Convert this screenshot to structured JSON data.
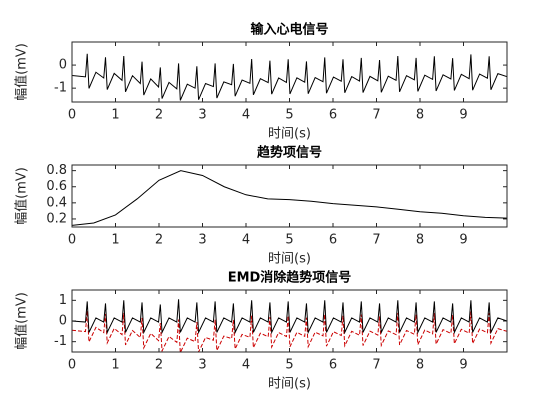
{
  "chart_data": [
    {
      "type": "line",
      "title": "输入心电信号",
      "xlabel": "时间(s)",
      "ylabel": "幅值(mV)",
      "xlim": [
        0,
        10
      ],
      "xticks": [
        0,
        1,
        2,
        3,
        4,
        5,
        6,
        7,
        8,
        9
      ],
      "ylim": [
        -1.6,
        1
      ],
      "yticks": [
        -1,
        0
      ],
      "x": [
        0,
        0.31,
        0.35,
        0.39,
        0.55,
        0.73,
        0.77,
        0.81,
        0.97,
        1.15,
        1.19,
        1.23,
        1.39,
        1.57,
        1.61,
        1.65,
        1.81,
        1.99,
        2.03,
        2.07,
        2.23,
        2.41,
        2.45,
        2.49,
        2.65,
        2.83,
        2.87,
        2.91,
        3.07,
        3.25,
        3.29,
        3.33,
        3.49,
        3.67,
        3.71,
        3.75,
        3.91,
        4.09,
        4.13,
        4.17,
        4.33,
        4.51,
        4.55,
        4.59,
        4.75,
        4.93,
        4.97,
        5.01,
        5.17,
        5.35,
        5.39,
        5.43,
        5.59,
        5.77,
        5.81,
        5.85,
        6.01,
        6.19,
        6.23,
        6.27,
        6.43,
        6.61,
        6.65,
        6.69,
        6.85,
        7.03,
        7.07,
        7.11,
        7.27,
        7.45,
        7.49,
        7.53,
        7.69,
        7.87,
        7.91,
        7.95,
        8.11,
        8.29,
        8.33,
        8.37,
        8.53,
        8.71,
        8.75,
        8.79,
        8.95,
        9.13,
        9.17,
        9.21,
        9.37,
        9.55,
        9.59,
        9.63,
        9.79,
        10
      ],
      "series": [
        {
          "color": "#000000",
          "linestyle": "solid",
          "values": [
            -0.45,
            -0.51,
            0.49,
            -1.01,
            -0.31,
            -0.56,
            0.34,
            -1.06,
            -0.36,
            -0.66,
            0.39,
            -1.16,
            -0.46,
            -0.8,
            0.15,
            -1.3,
            -0.6,
            -0.95,
            -0.1,
            -1.45,
            -0.75,
            -1.03,
            0.07,
            -1.53,
            -0.83,
            -1.0,
            -0.05,
            -1.5,
            -0.8,
            -0.93,
            0.07,
            -1.43,
            -0.73,
            -0.85,
            0.05,
            -1.35,
            -0.65,
            -0.79,
            0.26,
            -1.29,
            -0.59,
            -0.76,
            0.19,
            -1.26,
            -0.56,
            -0.75,
            0.25,
            -1.25,
            -0.55,
            -0.74,
            0.16,
            -1.24,
            -0.54,
            -0.72,
            0.33,
            -1.22,
            -0.52,
            -0.7,
            0.25,
            -1.2,
            -0.5,
            -0.69,
            0.31,
            -1.19,
            -0.49,
            -0.68,
            0.22,
            -1.18,
            -0.48,
            -0.66,
            0.39,
            -1.16,
            -0.46,
            -0.64,
            0.31,
            -1.14,
            -0.44,
            -0.62,
            0.38,
            -1.12,
            -0.42,
            -0.6,
            0.3,
            -1.1,
            -0.4,
            -0.59,
            0.46,
            -1.09,
            -0.39,
            -0.57,
            0.38,
            -1.07,
            -0.37,
            -0.5
          ]
        }
      ]
    },
    {
      "type": "line",
      "title": "趋势项信号",
      "xlabel": "时间(s)",
      "ylabel": "幅值(mV)",
      "xlim": [
        0,
        10
      ],
      "xticks": [
        0,
        1,
        2,
        3,
        4,
        5,
        6,
        7,
        8,
        9
      ],
      "ylim": [
        0.1,
        0.87
      ],
      "yticks": [
        0.2,
        0.4,
        0.6,
        0.8
      ],
      "x": [
        0,
        0.5,
        1,
        1.5,
        2,
        2.5,
        3,
        3.5,
        4,
        4.5,
        5,
        5.5,
        6,
        6.5,
        7,
        7.5,
        8,
        8.5,
        9,
        9.5,
        10
      ],
      "series": [
        {
          "color": "#000000",
          "linestyle": "solid",
          "values": [
            0.12,
            0.15,
            0.25,
            0.45,
            0.68,
            0.8,
            0.74,
            0.6,
            0.5,
            0.45,
            0.44,
            0.42,
            0.39,
            0.37,
            0.35,
            0.32,
            0.29,
            0.27,
            0.24,
            0.22,
            0.21
          ]
        }
      ]
    },
    {
      "type": "line",
      "title": "EMD消除趋势项信号",
      "xlabel": "时间(s)",
      "ylabel": "幅值(mV)",
      "xlim": [
        0,
        10
      ],
      "xticks": [
        0,
        1,
        2,
        3,
        4,
        5,
        6,
        7,
        8,
        9
      ],
      "ylim": [
        -1.5,
        1.5
      ],
      "yticks": [
        -1,
        0,
        1
      ],
      "x": [
        0,
        0.31,
        0.35,
        0.39,
        0.55,
        0.73,
        0.77,
        0.81,
        0.97,
        1.15,
        1.19,
        1.23,
        1.39,
        1.57,
        1.61,
        1.65,
        1.81,
        1.99,
        2.03,
        2.07,
        2.23,
        2.41,
        2.45,
        2.49,
        2.65,
        2.83,
        2.87,
        2.91,
        3.07,
        3.25,
        3.29,
        3.33,
        3.49,
        3.67,
        3.71,
        3.75,
        3.91,
        4.09,
        4.13,
        4.17,
        4.33,
        4.51,
        4.55,
        4.59,
        4.75,
        4.93,
        4.97,
        5.01,
        5.17,
        5.35,
        5.39,
        5.43,
        5.59,
        5.77,
        5.81,
        5.85,
        6.01,
        6.19,
        6.23,
        6.27,
        6.43,
        6.61,
        6.65,
        6.69,
        6.85,
        7.03,
        7.07,
        7.11,
        7.27,
        7.45,
        7.49,
        7.53,
        7.69,
        7.87,
        7.91,
        7.95,
        8.11,
        8.29,
        8.33,
        8.37,
        8.53,
        8.71,
        8.75,
        8.79,
        8.95,
        9.13,
        9.17,
        9.21,
        9.37,
        9.55,
        9.59,
        9.63,
        9.79,
        10
      ],
      "series": [
        {
          "color": "#cc0000",
          "linestyle": "dashed",
          "values": [
            -0.45,
            -0.51,
            0.49,
            -1.01,
            -0.31,
            -0.56,
            0.34,
            -1.06,
            -0.36,
            -0.66,
            0.39,
            -1.16,
            -0.46,
            -0.8,
            0.15,
            -1.3,
            -0.6,
            -0.95,
            -0.1,
            -1.45,
            -0.75,
            -1.03,
            0.07,
            -1.53,
            -0.83,
            -1.0,
            -0.05,
            -1.5,
            -0.8,
            -0.93,
            0.07,
            -1.43,
            -0.73,
            -0.85,
            0.05,
            -1.35,
            -0.65,
            -0.79,
            0.26,
            -1.29,
            -0.59,
            -0.76,
            0.19,
            -1.26,
            -0.56,
            -0.75,
            0.25,
            -1.25,
            -0.55,
            -0.74,
            0.16,
            -1.24,
            -0.54,
            -0.72,
            0.33,
            -1.22,
            -0.52,
            -0.7,
            0.25,
            -1.2,
            -0.5,
            -0.69,
            0.31,
            -1.19,
            -0.49,
            -0.68,
            0.22,
            -1.18,
            -0.48,
            -0.66,
            0.39,
            -1.16,
            -0.46,
            -0.64,
            0.31,
            -1.14,
            -0.44,
            -0.62,
            0.38,
            -1.12,
            -0.42,
            -0.6,
            0.3,
            -1.1,
            -0.4,
            -0.59,
            0.46,
            -1.09,
            -0.39,
            -0.57,
            0.38,
            -1.07,
            -0.37,
            -0.5
          ]
        },
        {
          "color": "#000000",
          "linestyle": "solid",
          "values": [
            0,
            -0.05,
            0.95,
            -0.55,
            0.15,
            -0.05,
            0.85,
            -0.55,
            0.15,
            -0.05,
            1.0,
            -0.55,
            0.15,
            -0.05,
            0.9,
            -0.55,
            0.15,
            -0.05,
            0.8,
            -0.55,
            0.15,
            -0.05,
            1.05,
            -0.55,
            0.15,
            -0.05,
            0.9,
            -0.55,
            0.15,
            -0.05,
            0.95,
            -0.55,
            0.15,
            -0.05,
            0.85,
            -0.55,
            0.15,
            -0.05,
            1.0,
            -0.55,
            0.15,
            -0.05,
            0.9,
            -0.55,
            0.15,
            -0.05,
            0.95,
            -0.55,
            0.15,
            -0.05,
            0.85,
            -0.55,
            0.15,
            -0.05,
            1.0,
            -0.55,
            0.15,
            -0.05,
            0.9,
            -0.55,
            0.15,
            -0.05,
            0.95,
            -0.55,
            0.15,
            -0.05,
            0.85,
            -0.55,
            0.15,
            -0.05,
            1.0,
            -0.55,
            0.15,
            -0.05,
            0.9,
            -0.55,
            0.15,
            -0.05,
            0.95,
            -0.55,
            0.15,
            -0.05,
            0.85,
            -0.55,
            0.15,
            -0.05,
            1.0,
            -0.55,
            0.15,
            -0.05,
            0.9,
            -0.55,
            0.15,
            0
          ]
        }
      ]
    }
  ]
}
